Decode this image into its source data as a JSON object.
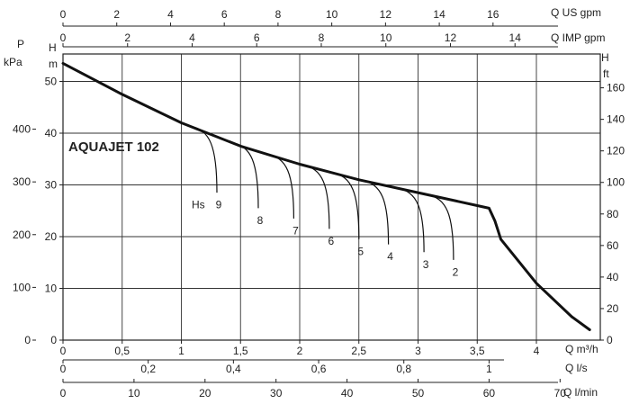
{
  "chart_data": {
    "type": "line",
    "title": "AQUAJET 102",
    "x_primary": {
      "unit": "Q m³/h",
      "ticks": [
        "0",
        "0,5",
        "1",
        "1,5",
        "2",
        "2,5",
        "3",
        "3,5",
        "4"
      ],
      "range": [
        0,
        4.6
      ]
    },
    "x_ls": {
      "unit": "Q l/s",
      "ticks": [
        "0",
        "0,2",
        "0,4",
        "0,6",
        "0,8",
        "1"
      ]
    },
    "x_lmin": {
      "unit": "Q l/min",
      "ticks": [
        "0",
        "10",
        "20",
        "30",
        "40",
        "50",
        "60",
        "70"
      ]
    },
    "x_usgpm": {
      "unit": "Q US gpm",
      "ticks": [
        "0",
        "2",
        "4",
        "6",
        "8",
        "10",
        "12",
        "14",
        "16"
      ]
    },
    "x_impgpm": {
      "unit": "Q IMP gpm",
      "ticks": [
        "0",
        "2",
        "4",
        "6",
        "8",
        "10",
        "12",
        "14"
      ]
    },
    "y_head_m": {
      "unit_top": "H",
      "unit_bottom": "m",
      "ticks": [
        "0",
        "10",
        "20",
        "30",
        "40",
        "50"
      ],
      "range": [
        0,
        55
      ]
    },
    "y_pressure": {
      "unit_top": "P",
      "unit_bottom": "kPa",
      "ticks": [
        "0",
        "100",
        "200",
        "300",
        "400"
      ]
    },
    "y_head_ft": {
      "unit_top": "H",
      "unit_bottom": "ft",
      "ticks": [
        "0",
        "20",
        "40",
        "60",
        "80",
        "100",
        "120",
        "140",
        "160"
      ]
    },
    "pump_curve": {
      "x": [
        0,
        0.5,
        1.0,
        1.5,
        2.0,
        2.5,
        3.0,
        3.5,
        3.6,
        3.65,
        3.7,
        4.0,
        4.3,
        4.45
      ],
      "y": [
        53.5,
        47.5,
        42.0,
        37.5,
        34.0,
        31.0,
        28.5,
        26.0,
        25.5,
        23.0,
        19.5,
        11.0,
        4.5,
        2.0
      ]
    },
    "suction_curves": [
      {
        "label": "Hs",
        "x": 1.3,
        "y": 26.5
      },
      {
        "label": "9",
        "x": 1.3,
        "y": 26.5
      },
      {
        "label": "8",
        "x": 1.65,
        "y": 23.5
      },
      {
        "label": "7",
        "x": 1.95,
        "y": 21.5
      },
      {
        "label": "6",
        "x": 2.25,
        "y": 19.5
      },
      {
        "label": "5",
        "x": 2.5,
        "y": 17.5
      },
      {
        "label": "4",
        "x": 2.75,
        "y": 16.5
      },
      {
        "label": "3",
        "x": 3.05,
        "y": 15.0
      },
      {
        "label": "2",
        "x": 3.3,
        "y": 13.5
      }
    ],
    "grid": true
  }
}
